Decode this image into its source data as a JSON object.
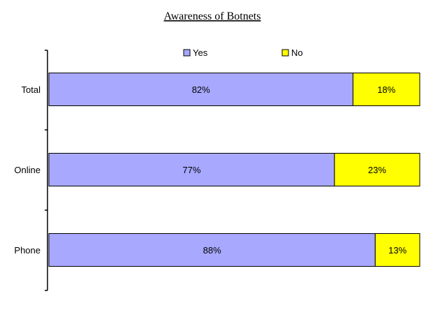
{
  "chart_data": {
    "type": "bar",
    "orientation": "horizontal",
    "stacked": true,
    "title": "Awareness of Botnets",
    "categories": [
      "Total",
      "Online",
      "Phone"
    ],
    "series": [
      {
        "name": "Yes",
        "values": [
          82,
          77,
          88
        ],
        "labels": [
          "82%",
          "77%",
          "88%"
        ],
        "color": "#a7a8fe"
      },
      {
        "name": "No",
        "values": [
          18,
          23,
          13
        ],
        "labels": [
          "18%",
          "23%",
          "13%"
        ],
        "color": "#ffff00"
      }
    ],
    "xlim": [
      0,
      100
    ],
    "grid": false,
    "legend": "top"
  }
}
